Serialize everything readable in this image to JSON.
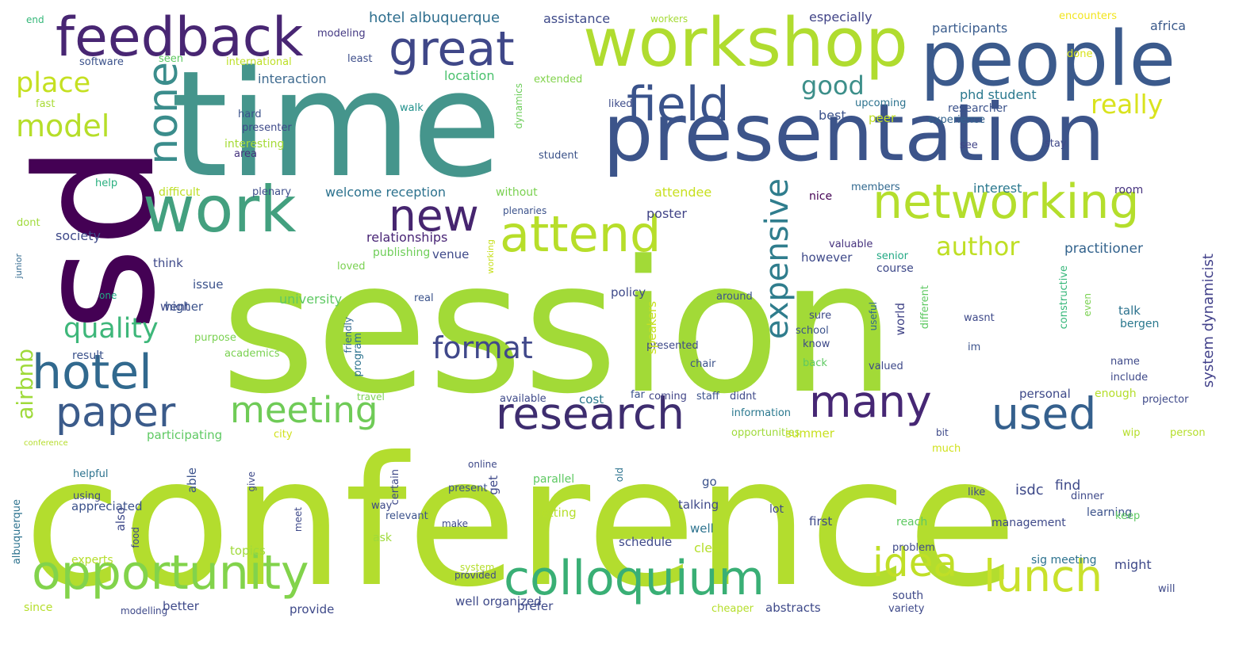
{
  "title": "",
  "words": [
    {
      "text": "session",
      "color": "#a2da37"
    },
    {
      "text": "conference",
      "color": "#b3dd2e"
    },
    {
      "text": "time",
      "color": "#45958c"
    },
    {
      "text": "sd",
      "color": "#440154"
    },
    {
      "text": "presentation",
      "color": "#3c548a"
    },
    {
      "text": "people",
      "color": "#3b5a8c"
    },
    {
      "text": "workshop",
      "color": "#b0dc2f"
    },
    {
      "text": "feedback",
      "color": "#482673"
    },
    {
      "text": "work",
      "color": "#43a07f"
    },
    {
      "text": "great",
      "color": "#3f4788"
    },
    {
      "text": "hotel",
      "color": "#31698e"
    },
    {
      "text": "networking",
      "color": "#b4de2c"
    },
    {
      "text": "attend",
      "color": "#b7de2a"
    },
    {
      "text": "field",
      "color": "#3a538b"
    },
    {
      "text": "new",
      "color": "#46256f"
    },
    {
      "text": "none",
      "color": "#3b8d8c"
    },
    {
      "text": "opportunity",
      "color": "#82d34b"
    },
    {
      "text": "conference",
      "color": "#b5dd2b"
    },
    {
      "text": "colloquium",
      "color": "#39af75"
    },
    {
      "text": "lunch",
      "color": "#c9e12b"
    },
    {
      "text": "research",
      "color": "#3e2d6f"
    },
    {
      "text": "paper",
      "color": "#3b5b8a"
    },
    {
      "text": "meeting",
      "color": "#6fcb57"
    },
    {
      "text": "many",
      "color": "#462774"
    },
    {
      "text": "used",
      "color": "#35608d"
    },
    {
      "text": "expensive",
      "color": "#2f7d8d"
    },
    {
      "text": "format",
      "color": "#40488a"
    },
    {
      "text": "idea",
      "color": "#c0df27"
    },
    {
      "text": "quality",
      "color": "#3eb77a"
    },
    {
      "text": "model",
      "color": "#b6de29"
    },
    {
      "text": "place",
      "color": "#c5e021"
    },
    {
      "text": "good",
      "color": "#3d8f8a"
    },
    {
      "text": "really",
      "color": "#d9e31e"
    },
    {
      "text": "author",
      "color": "#bfdf25"
    },
    {
      "text": "airbnb",
      "color": "#9fda3a"
    },
    {
      "text": "system dynamicist",
      "color": "#42418a"
    },
    {
      "text": "hotel albuquerque",
      "color": "#2e6e8e"
    },
    {
      "text": "assistance",
      "color": "#3e4a89"
    },
    {
      "text": "especially",
      "color": "#414487"
    },
    {
      "text": "participants",
      "color": "#3b5d8e"
    },
    {
      "text": "africa",
      "color": "#3b5a8b"
    },
    {
      "text": "encounters",
      "color": "#f2e51d"
    },
    {
      "text": "done",
      "color": "#d8e219"
    },
    {
      "text": "end",
      "color": "#35b779"
    },
    {
      "text": "modeling",
      "color": "#443983"
    },
    {
      "text": "workers",
      "color": "#a5db36"
    },
    {
      "text": "software",
      "color": "#3b528b"
    },
    {
      "text": "seen",
      "color": "#5ec962"
    },
    {
      "text": "international",
      "color": "#bddf26"
    },
    {
      "text": "least",
      "color": "#3d4e8a"
    },
    {
      "text": "interaction",
      "color": "#3e6a8f"
    },
    {
      "text": "location",
      "color": "#4ac16d"
    },
    {
      "text": "extended",
      "color": "#82d34d"
    },
    {
      "text": "fast",
      "color": "#a8db34"
    },
    {
      "text": "liked",
      "color": "#3e4c8a"
    },
    {
      "text": "dynamics",
      "color": "#6ccd5a"
    },
    {
      "text": "phd student",
      "color": "#2a788e"
    },
    {
      "text": "researcher",
      "color": "#3b528b"
    },
    {
      "text": "upcoming",
      "color": "#2c728e"
    },
    {
      "text": "hard",
      "color": "#3b528b"
    },
    {
      "text": "presenter",
      "color": "#3e4989"
    },
    {
      "text": "walk",
      "color": "#21918c"
    },
    {
      "text": "best",
      "color": "#3b528b"
    },
    {
      "text": "peer",
      "color": "#c2df23"
    },
    {
      "text": "experience",
      "color": "#33638d"
    },
    {
      "text": "interesting",
      "color": "#a5db36"
    },
    {
      "text": "area",
      "color": "#46337e"
    },
    {
      "text": "student",
      "color": "#3b5289"
    },
    {
      "text": "stay",
      "color": "#3f4788"
    },
    {
      "text": "see",
      "color": "#414487"
    },
    {
      "text": "help",
      "color": "#29af7f"
    },
    {
      "text": "difficult",
      "color": "#bddf26"
    },
    {
      "text": "plenary",
      "color": "#3d4d8a"
    },
    {
      "text": "welcome reception",
      "color": "#2c728e"
    },
    {
      "text": "without",
      "color": "#7ad151"
    },
    {
      "text": "attendee",
      "color": "#c8e020"
    },
    {
      "text": "interest",
      "color": "#2a788e"
    },
    {
      "text": "members",
      "color": "#31688e"
    },
    {
      "text": "nice",
      "color": "#440154"
    },
    {
      "text": "room",
      "color": "#46337e"
    },
    {
      "text": "dont",
      "color": "#9fda3a"
    },
    {
      "text": "plenaries",
      "color": "#3b528b"
    },
    {
      "text": "poster",
      "color": "#414487"
    },
    {
      "text": "society",
      "color": "#3e4989"
    },
    {
      "text": "relationships",
      "color": "#482475"
    },
    {
      "text": "publishing",
      "color": "#6ece58"
    },
    {
      "text": "venue",
      "color": "#3e4989"
    },
    {
      "text": "practitioner",
      "color": "#33638d"
    },
    {
      "text": "valuable",
      "color": "#46327e"
    },
    {
      "text": "senior",
      "color": "#22a884"
    },
    {
      "text": "junior",
      "color": "#31688e"
    },
    {
      "text": "think",
      "color": "#3e4989"
    },
    {
      "text": "loved",
      "color": "#7ad151"
    },
    {
      "text": "however",
      "color": "#3e4989"
    },
    {
      "text": "course",
      "color": "#3e4989"
    },
    {
      "text": "issue",
      "color": "#3b528b"
    },
    {
      "text": "working",
      "color": "#c8e020"
    },
    {
      "text": "constructive",
      "color": "#35b779"
    },
    {
      "text": "went",
      "color": "#3e4989"
    },
    {
      "text": "one",
      "color": "#22a884"
    },
    {
      "text": "university",
      "color": "#5ec962"
    },
    {
      "text": "real",
      "color": "#3b528b"
    },
    {
      "text": "policy",
      "color": "#3e4989"
    },
    {
      "text": "around",
      "color": "#3b528b"
    },
    {
      "text": "even",
      "color": "#7ad151"
    },
    {
      "text": "talk",
      "color": "#2c728e"
    },
    {
      "text": "higher",
      "color": "#3b528b"
    },
    {
      "text": "useful",
      "color": "#31688e"
    },
    {
      "text": "sure",
      "color": "#3e4989"
    },
    {
      "text": "world",
      "color": "#414487"
    },
    {
      "text": "different",
      "color": "#5ec962"
    },
    {
      "text": "wasnt",
      "color": "#3e4989"
    },
    {
      "text": "bergen",
      "color": "#2a788e"
    },
    {
      "text": "purpose",
      "color": "#7ad151"
    },
    {
      "text": "school",
      "color": "#3b528b"
    },
    {
      "text": "academics",
      "color": "#7ad151"
    },
    {
      "text": "program",
      "color": "#2c728e"
    },
    {
      "text": "friendly",
      "color": "#31688e"
    },
    {
      "text": "presented",
      "color": "#3e4989"
    },
    {
      "text": "know",
      "color": "#3e4989"
    },
    {
      "text": "im",
      "color": "#3b528b"
    },
    {
      "text": "result",
      "color": "#3b528b"
    },
    {
      "text": "speakers",
      "color": "#c8e020"
    },
    {
      "text": "chair",
      "color": "#3b528b"
    },
    {
      "text": "back",
      "color": "#5ec962"
    },
    {
      "text": "valued",
      "color": "#3e4989"
    },
    {
      "text": "name",
      "color": "#3e4989"
    },
    {
      "text": "include",
      "color": "#3e4989"
    },
    {
      "text": "travel",
      "color": "#7ad151"
    },
    {
      "text": "cost",
      "color": "#2a788e"
    },
    {
      "text": "far",
      "color": "#3b528b"
    },
    {
      "text": "coming",
      "color": "#414487"
    },
    {
      "text": "staff",
      "color": "#3b528b"
    },
    {
      "text": "didnt",
      "color": "#3e4989"
    },
    {
      "text": "enough",
      "color": "#b5de2b"
    },
    {
      "text": "personal",
      "color": "#3e4989"
    },
    {
      "text": "projector",
      "color": "#3e4989"
    },
    {
      "text": "available",
      "color": "#3e4989"
    },
    {
      "text": "information",
      "color": "#2a788e"
    },
    {
      "text": "participating",
      "color": "#5ec962"
    },
    {
      "text": "city",
      "color": "#d0e11c"
    },
    {
      "text": "opportunities",
      "color": "#9fda3a"
    },
    {
      "text": "summer",
      "color": "#c8e020"
    },
    {
      "text": "bit",
      "color": "#3e4989"
    },
    {
      "text": "wip",
      "color": "#b5de2b"
    },
    {
      "text": "person",
      "color": "#b5de2b"
    },
    {
      "text": "online",
      "color": "#3e4989"
    },
    {
      "text": "much",
      "color": "#d0e11c"
    },
    {
      "text": "helpful",
      "color": "#2c728e"
    },
    {
      "text": "able",
      "color": "#3b528b"
    },
    {
      "text": "certain",
      "color": "#3e4989"
    },
    {
      "text": "present",
      "color": "#3b528b"
    },
    {
      "text": "get",
      "color": "#3e4989"
    },
    {
      "text": "find",
      "color": "#3e4989"
    },
    {
      "text": "parallel",
      "color": "#5ec962"
    },
    {
      "text": "old",
      "color": "#2c728e"
    },
    {
      "text": "go",
      "color": "#3b528b"
    },
    {
      "text": "isdc",
      "color": "#3e4989"
    },
    {
      "text": "using",
      "color": "#3e4989"
    },
    {
      "text": "appreciated",
      "color": "#3b528b"
    },
    {
      "text": "give",
      "color": "#3e4989"
    },
    {
      "text": "way",
      "color": "#3e4989"
    },
    {
      "text": "relevant",
      "color": "#3b528b"
    },
    {
      "text": "getting",
      "color": "#b5de2b"
    },
    {
      "text": "talking",
      "color": "#3e4989"
    },
    {
      "text": "lot",
      "color": "#3e4989"
    },
    {
      "text": "like",
      "color": "#3e4989"
    },
    {
      "text": "dinner",
      "color": "#3e4989"
    },
    {
      "text": "learning",
      "color": "#3b528b"
    },
    {
      "text": "albuquerque",
      "color": "#2c728e"
    },
    {
      "text": "also",
      "color": "#3e4989"
    },
    {
      "text": "well",
      "color": "#2c728e"
    },
    {
      "text": "first",
      "color": "#3e4989"
    },
    {
      "text": "reach",
      "color": "#5ec962"
    },
    {
      "text": "management",
      "color": "#3e4989"
    },
    {
      "text": "keep",
      "color": "#5ec962"
    },
    {
      "text": "meet",
      "color": "#3e4989"
    },
    {
      "text": "break",
      "color": "#b5de2b"
    },
    {
      "text": "make",
      "color": "#3e4989"
    },
    {
      "text": "ask",
      "color": "#9fda3a"
    },
    {
      "text": "schedule",
      "color": "#3e4989"
    },
    {
      "text": "experts",
      "color": "#b5de2b"
    },
    {
      "text": "food",
      "color": "#3e4989"
    },
    {
      "text": "topics",
      "color": "#9fda3a"
    },
    {
      "text": "clear",
      "color": "#b5de2b"
    },
    {
      "text": "problem",
      "color": "#3e4989"
    },
    {
      "text": "sig meeting",
      "color": "#2c728e"
    },
    {
      "text": "might",
      "color": "#3e4989"
    },
    {
      "text": "system",
      "color": "#b5de2b"
    },
    {
      "text": "provided",
      "color": "#3e4989"
    },
    {
      "text": "south",
      "color": "#3e4989"
    },
    {
      "text": "will",
      "color": "#3e4989"
    },
    {
      "text": "since",
      "color": "#b5de2b"
    },
    {
      "text": "modelling",
      "color": "#3e4989"
    },
    {
      "text": "better",
      "color": "#3e4989"
    },
    {
      "text": "provide",
      "color": "#3e4989"
    },
    {
      "text": "well organized",
      "color": "#3e4989"
    },
    {
      "text": "prefer",
      "color": "#3e4989"
    },
    {
      "text": "cheaper",
      "color": "#b5de2b"
    },
    {
      "text": "abstracts",
      "color": "#3e4989"
    },
    {
      "text": "variety",
      "color": "#3e4989"
    }
  ]
}
